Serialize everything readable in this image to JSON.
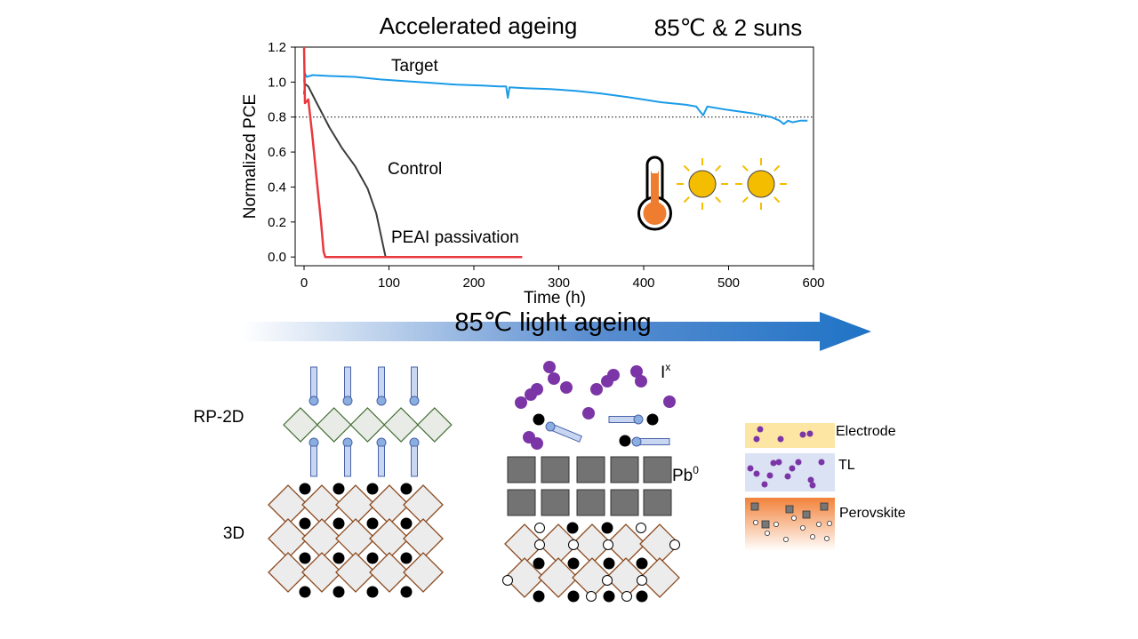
{
  "header": {
    "title": "Accelerated ageing",
    "condition": "85℃ & 2 suns"
  },
  "chart_data": {
    "type": "line",
    "xlabel": "Time (h)",
    "ylabel": "Normalized PCE",
    "xlim": [
      0,
      600
    ],
    "ylim": [
      -0.05,
      1.2
    ],
    "xticks": [
      "0",
      "100",
      "200",
      "300",
      "400",
      "500",
      "600"
    ],
    "yticks": [
      "0.0",
      "0.2",
      "0.4",
      "0.6",
      "0.8",
      "1.0",
      "1.2"
    ],
    "reference_line": {
      "y": 0.8,
      "style": "dotted"
    },
    "series": [
      {
        "name": "Target",
        "color": "#1a9be8",
        "label_color": "#2748d8",
        "points": [
          [
            0,
            1.0
          ],
          [
            1,
            1.05
          ],
          [
            3,
            1.03
          ],
          [
            10,
            1.04
          ],
          [
            30,
            1.035
          ],
          [
            60,
            1.03
          ],
          [
            90,
            1.015
          ],
          [
            120,
            1.005
          ],
          [
            150,
            0.995
          ],
          [
            180,
            0.985
          ],
          [
            210,
            0.98
          ],
          [
            230,
            0.975
          ],
          [
            238,
            0.975
          ],
          [
            240,
            0.91
          ],
          [
            242,
            0.97
          ],
          [
            260,
            0.965
          ],
          [
            290,
            0.96
          ],
          [
            320,
            0.95
          ],
          [
            350,
            0.935
          ],
          [
            380,
            0.915
          ],
          [
            400,
            0.9
          ],
          [
            420,
            0.885
          ],
          [
            450,
            0.87
          ],
          [
            462,
            0.86
          ],
          [
            465,
            0.84
          ],
          [
            470,
            0.81
          ],
          [
            475,
            0.86
          ],
          [
            500,
            0.84
          ],
          [
            530,
            0.82
          ],
          [
            550,
            0.8
          ],
          [
            560,
            0.78
          ],
          [
            565,
            0.76
          ],
          [
            570,
            0.78
          ],
          [
            575,
            0.77
          ],
          [
            585,
            0.78
          ],
          [
            593,
            0.78
          ]
        ]
      },
      {
        "name": "Control",
        "color": "#3c3c3c",
        "label_color": "#000000",
        "points": [
          [
            0,
            0.93
          ],
          [
            1,
            0.99
          ],
          [
            5,
            0.975
          ],
          [
            15,
            0.88
          ],
          [
            30,
            0.74
          ],
          [
            45,
            0.62
          ],
          [
            60,
            0.52
          ],
          [
            75,
            0.39
          ],
          [
            85,
            0.25
          ],
          [
            92,
            0.09
          ],
          [
            96,
            0.0
          ]
        ]
      },
      {
        "name": "PEAI passivation",
        "color": "#e8393f",
        "label_color": "#e8393f",
        "points": [
          [
            0,
            1.2
          ],
          [
            1,
            0.88
          ],
          [
            5,
            0.9
          ],
          [
            10,
            0.68
          ],
          [
            15,
            0.44
          ],
          [
            20,
            0.2
          ],
          [
            23,
            0.03
          ],
          [
            25,
            0.0
          ],
          [
            257,
            0.0
          ]
        ]
      }
    ]
  },
  "sun_color": "#f5bd00",
  "thermometer_color": "#ee7d2f",
  "mechanism": {
    "arrow_label": "85℃ light ageing",
    "structure_labels": {
      "rp2d": "RP-2D",
      "bulk3d": "3D"
    },
    "ion_label": "I",
    "ion_sup": "x",
    "lead_label": "Pb",
    "lead_sup": "0",
    "iodine_color": "#7b35a6",
    "lattice_color": "#8b4a1f"
  },
  "device_stack": {
    "layers": [
      {
        "name": "Electrode",
        "color": "#fde6a4"
      },
      {
        "name": "TL",
        "color": "#dbe2f4"
      },
      {
        "name": "Perovskite",
        "color": "#f2823a"
      }
    ]
  }
}
